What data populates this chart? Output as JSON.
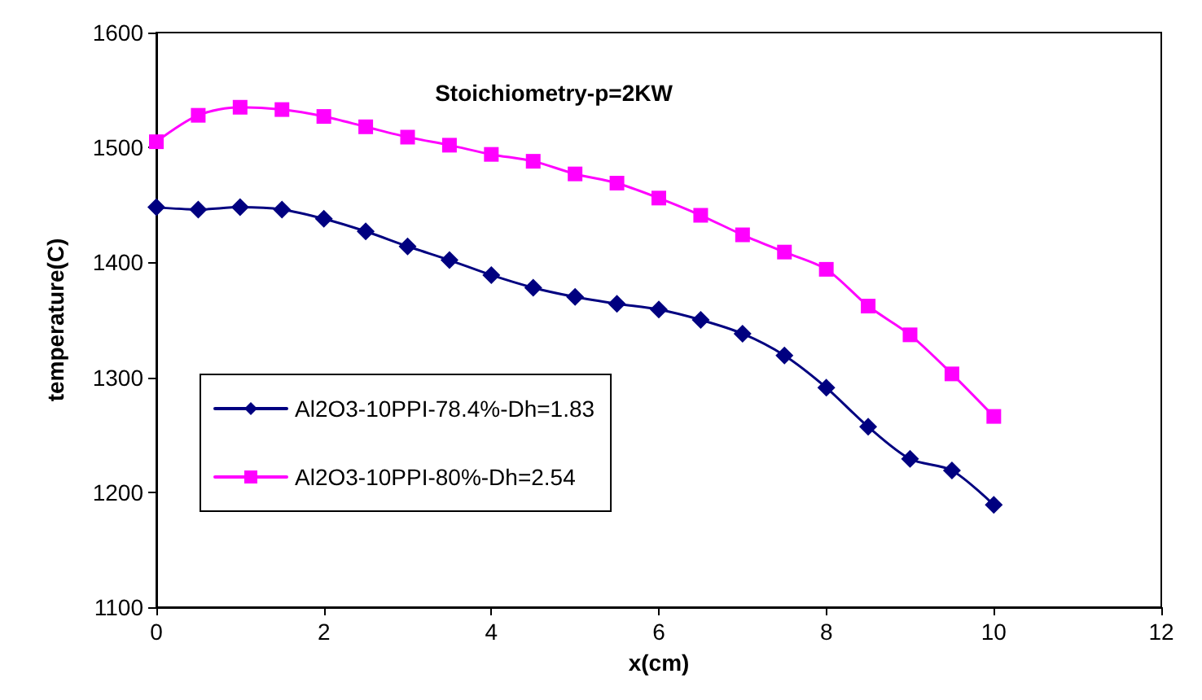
{
  "chart_data": {
    "type": "line",
    "title": "Stoichiometry-p=2KW",
    "xlabel": "x(cm)",
    "ylabel": "temperature(C)",
    "x": [
      0,
      0.5,
      1,
      1.5,
      2,
      2.5,
      3,
      3.5,
      4,
      4.5,
      5,
      5.5,
      6,
      6.5,
      7,
      7.5,
      8,
      8.5,
      9,
      9.5,
      10
    ],
    "series": [
      {
        "name": "Al2O3-10PPI-78.4%-Dh=1.83",
        "color": "#000080",
        "marker": "diamond",
        "values": [
          1448,
          1446,
          1448,
          1446,
          1438,
          1427,
          1414,
          1402,
          1389,
          1378,
          1370,
          1364,
          1359,
          1350,
          1338,
          1319,
          1291,
          1257,
          1229,
          1219,
          1189
        ]
      },
      {
        "name": "Al2O3-10PPI-80%-Dh=2.54",
        "color": "#ff00ff",
        "marker": "square",
        "values": [
          1505,
          1528,
          1535,
          1533,
          1527,
          1518,
          1509,
          1502,
          1494,
          1488,
          1477,
          1469,
          1456,
          1441,
          1424,
          1409,
          1394,
          1362,
          1337,
          1303,
          1266
        ]
      }
    ],
    "xlim": [
      0,
      12
    ],
    "xticks": [
      0,
      2,
      4,
      6,
      8,
      10,
      12
    ],
    "ylim": [
      1100,
      1600
    ],
    "yticks": [
      1100,
      1200,
      1300,
      1400,
      1500,
      1600
    ],
    "grid": false,
    "legend": "bottom left",
    "line_style": "solid"
  }
}
